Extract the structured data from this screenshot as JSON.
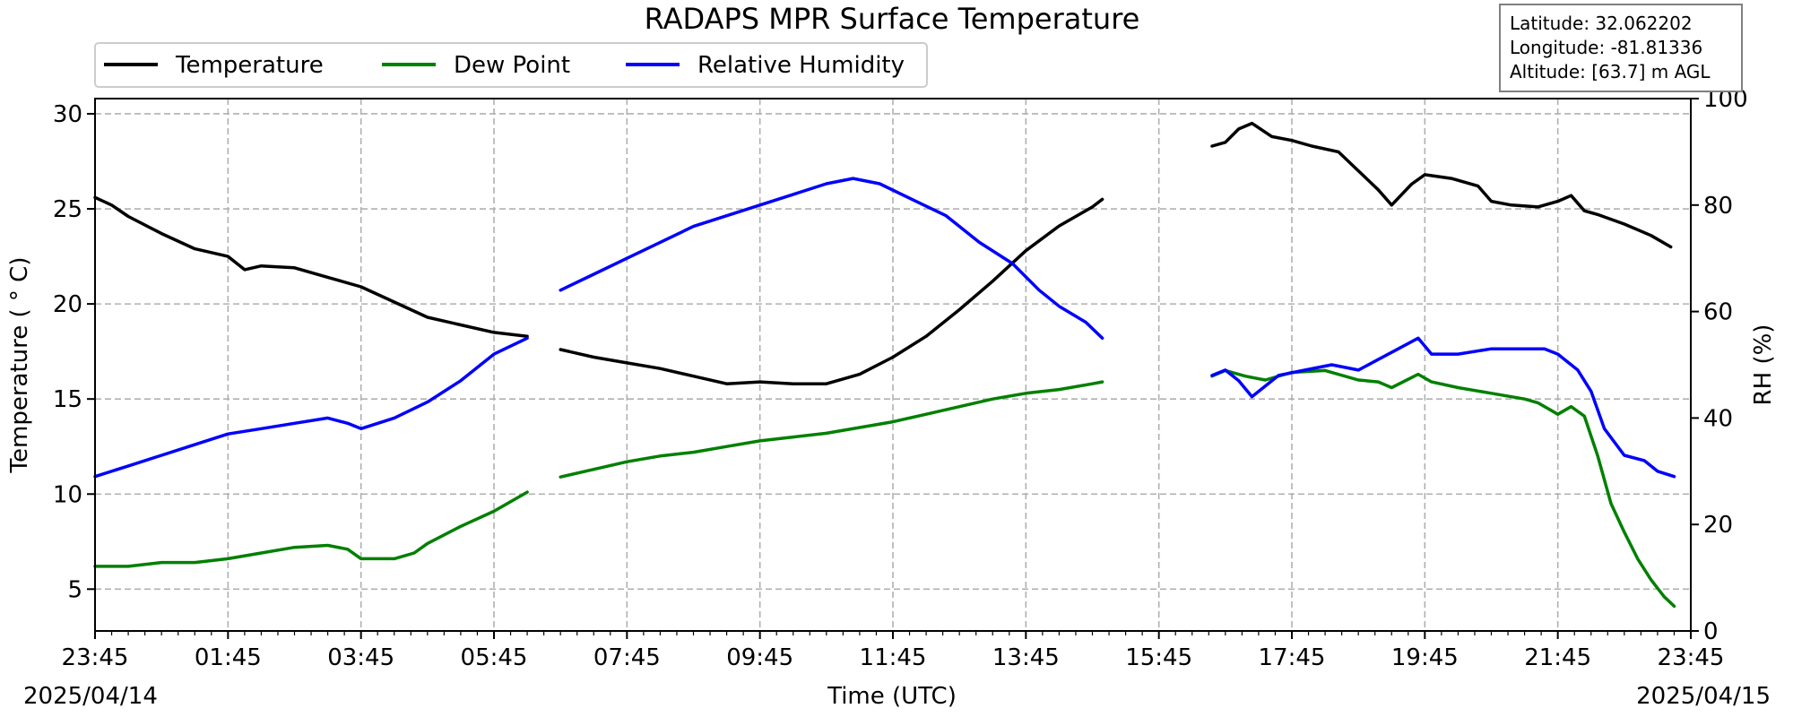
{
  "chart_data": {
    "type": "line",
    "title": "RADAPS MPR Surface Temperature",
    "xlabel": "Time (UTC)",
    "ylabel_left": "Temperature ($^\\circ$C)",
    "ylabel_left_display": "Temperature ( ° C)",
    "ylabel_right": "RH (%)",
    "x_ticks": [
      "23:45",
      "01:45",
      "03:45",
      "05:45",
      "07:45",
      "09:45",
      "11:45",
      "13:45",
      "15:45",
      "17:45",
      "19:45",
      "21:45",
      "23:45"
    ],
    "x_range_hours": [
      0,
      24
    ],
    "date_start": "2025/04/14",
    "date_end": "2025/04/15",
    "y_left_ticks": [
      5,
      10,
      15,
      20,
      25,
      30
    ],
    "y_left_range": [
      2.8,
      30.8
    ],
    "y_right_ticks": [
      0,
      20,
      40,
      60,
      80,
      100
    ],
    "y_right_range": [
      0,
      100
    ],
    "grid": true,
    "legend_position": "top-left",
    "info_box": {
      "latitude": "Latitude: 32.062202",
      "longitude": "Longitude: -81.81336",
      "altitude": "Altitude: [63.7] m AGL"
    },
    "series": [
      {
        "name": "Temperature",
        "axis": "left",
        "color": "#000000",
        "segments": [
          [
            [
              0,
              25.6
            ],
            [
              0.25,
              25.2
            ],
            [
              0.5,
              24.6
            ],
            [
              1.0,
              23.7
            ],
            [
              1.5,
              22.9
            ],
            [
              2.0,
              22.5
            ],
            [
              2.25,
              21.8
            ],
            [
              2.5,
              22.0
            ],
            [
              3.0,
              21.9
            ],
            [
              3.5,
              21.4
            ],
            [
              4.0,
              20.9
            ],
            [
              4.5,
              20.1
            ],
            [
              5.0,
              19.3
            ],
            [
              5.5,
              18.9
            ],
            [
              6.0,
              18.5
            ],
            [
              6.5,
              18.3
            ]
          ],
          [
            [
              7.0,
              17.6
            ],
            [
              7.5,
              17.2
            ],
            [
              8.0,
              16.9
            ],
            [
              8.5,
              16.6
            ],
            [
              9.0,
              16.2
            ],
            [
              9.5,
              15.8
            ],
            [
              10.0,
              15.9
            ],
            [
              10.5,
              15.8
            ],
            [
              11.0,
              15.8
            ],
            [
              11.5,
              16.3
            ],
            [
              12.0,
              17.2
            ],
            [
              12.5,
              18.3
            ],
            [
              13.0,
              19.7
            ],
            [
              13.5,
              21.2
            ],
            [
              14.0,
              22.8
            ],
            [
              14.5,
              24.1
            ],
            [
              15.0,
              25.1
            ],
            [
              15.15,
              25.5
            ]
          ],
          [
            [
              16.8,
              28.3
            ],
            [
              17.0,
              28.5
            ],
            [
              17.2,
              29.2
            ],
            [
              17.4,
              29.5
            ],
            [
              17.7,
              28.8
            ],
            [
              18.0,
              28.6
            ],
            [
              18.3,
              28.3
            ],
            [
              18.7,
              28.0
            ],
            [
              19.0,
              27.0
            ],
            [
              19.3,
              26.0
            ],
            [
              19.5,
              25.2
            ],
            [
              19.8,
              26.3
            ],
            [
              20.0,
              26.8
            ],
            [
              20.4,
              26.6
            ],
            [
              20.8,
              26.2
            ],
            [
              21.0,
              25.4
            ],
            [
              21.3,
              25.2
            ],
            [
              21.7,
              25.1
            ],
            [
              22.0,
              25.4
            ],
            [
              22.2,
              25.7
            ],
            [
              22.4,
              24.9
            ],
            [
              22.6,
              24.7
            ],
            [
              23.0,
              24.2
            ],
            [
              23.4,
              23.6
            ],
            [
              23.7,
              23.0
            ]
          ]
        ]
      },
      {
        "name": "Dew Point",
        "axis": "left",
        "color": "#008000",
        "segments": [
          [
            [
              0,
              6.2
            ],
            [
              0.5,
              6.2
            ],
            [
              1.0,
              6.4
            ],
            [
              1.5,
              6.4
            ],
            [
              2.0,
              6.6
            ],
            [
              2.5,
              6.9
            ],
            [
              3.0,
              7.2
            ],
            [
              3.5,
              7.3
            ],
            [
              3.8,
              7.1
            ],
            [
              4.0,
              6.6
            ],
            [
              4.5,
              6.6
            ],
            [
              4.8,
              6.9
            ],
            [
              5.0,
              7.4
            ],
            [
              5.5,
              8.3
            ],
            [
              6.0,
              9.1
            ],
            [
              6.5,
              10.1
            ]
          ],
          [
            [
              7.0,
              10.9
            ],
            [
              7.5,
              11.3
            ],
            [
              8.0,
              11.7
            ],
            [
              8.5,
              12.0
            ],
            [
              9.0,
              12.2
            ],
            [
              9.5,
              12.5
            ],
            [
              10.0,
              12.8
            ],
            [
              10.5,
              13.0
            ],
            [
              11.0,
              13.2
            ],
            [
              11.5,
              13.5
            ],
            [
              12.0,
              13.8
            ],
            [
              12.5,
              14.2
            ],
            [
              13.0,
              14.6
            ],
            [
              13.5,
              15.0
            ],
            [
              14.0,
              15.3
            ],
            [
              14.5,
              15.5
            ],
            [
              15.0,
              15.8
            ],
            [
              15.15,
              15.9
            ]
          ],
          [
            [
              16.8,
              16.2
            ],
            [
              17.0,
              16.5
            ],
            [
              17.3,
              16.2
            ],
            [
              17.6,
              16.0
            ],
            [
              18.0,
              16.4
            ],
            [
              18.5,
              16.5
            ],
            [
              19.0,
              16.0
            ],
            [
              19.3,
              15.9
            ],
            [
              19.5,
              15.6
            ],
            [
              19.9,
              16.3
            ],
            [
              20.1,
              15.9
            ],
            [
              20.5,
              15.6
            ],
            [
              21.0,
              15.3
            ],
            [
              21.5,
              15.0
            ],
            [
              21.7,
              14.8
            ],
            [
              22.0,
              14.2
            ],
            [
              22.2,
              14.6
            ],
            [
              22.4,
              14.1
            ],
            [
              22.6,
              12.0
            ],
            [
              22.8,
              9.5
            ],
            [
              23.0,
              8.0
            ],
            [
              23.2,
              6.6
            ],
            [
              23.4,
              5.5
            ],
            [
              23.6,
              4.6
            ],
            [
              23.75,
              4.1
            ]
          ]
        ]
      },
      {
        "name": "Relative Humidity",
        "axis": "right",
        "color": "#0000ff",
        "segments": [
          [
            [
              0,
              29
            ],
            [
              0.5,
              31
            ],
            [
              1.0,
              33
            ],
            [
              1.5,
              35
            ],
            [
              2.0,
              37
            ],
            [
              2.5,
              38
            ],
            [
              3.0,
              39
            ],
            [
              3.5,
              40
            ],
            [
              3.8,
              39
            ],
            [
              4.0,
              38
            ],
            [
              4.5,
              40
            ],
            [
              5.0,
              43
            ],
            [
              5.5,
              47
            ],
            [
              6.0,
              52
            ],
            [
              6.5,
              55
            ]
          ],
          [
            [
              7.0,
              64
            ],
            [
              7.5,
              67
            ],
            [
              8.0,
              70
            ],
            [
              8.5,
              73
            ],
            [
              9.0,
              76
            ],
            [
              9.5,
              78
            ],
            [
              10.0,
              80
            ],
            [
              10.5,
              82
            ],
            [
              11.0,
              84
            ],
            [
              11.4,
              85
            ],
            [
              11.8,
              84
            ],
            [
              12.3,
              81
            ],
            [
              12.8,
              78
            ],
            [
              13.3,
              73
            ],
            [
              13.8,
              69
            ],
            [
              14.2,
              64
            ],
            [
              14.5,
              61
            ],
            [
              14.9,
              58
            ],
            [
              15.15,
              55
            ]
          ],
          [
            [
              16.8,
              48
            ],
            [
              17.0,
              49
            ],
            [
              17.2,
              47
            ],
            [
              17.4,
              44
            ],
            [
              17.8,
              48
            ],
            [
              18.2,
              49
            ],
            [
              18.6,
              50
            ],
            [
              19.0,
              49
            ],
            [
              19.3,
              51
            ],
            [
              19.6,
              53
            ],
            [
              19.9,
              55
            ],
            [
              20.1,
              52
            ],
            [
              20.5,
              52
            ],
            [
              21.0,
              53
            ],
            [
              21.5,
              53
            ],
            [
              21.8,
              53
            ],
            [
              22.0,
              52
            ],
            [
              22.3,
              49
            ],
            [
              22.5,
              45
            ],
            [
              22.7,
              38
            ],
            [
              23.0,
              33
            ],
            [
              23.3,
              32
            ],
            [
              23.5,
              30
            ],
            [
              23.75,
              29
            ]
          ]
        ]
      }
    ]
  }
}
